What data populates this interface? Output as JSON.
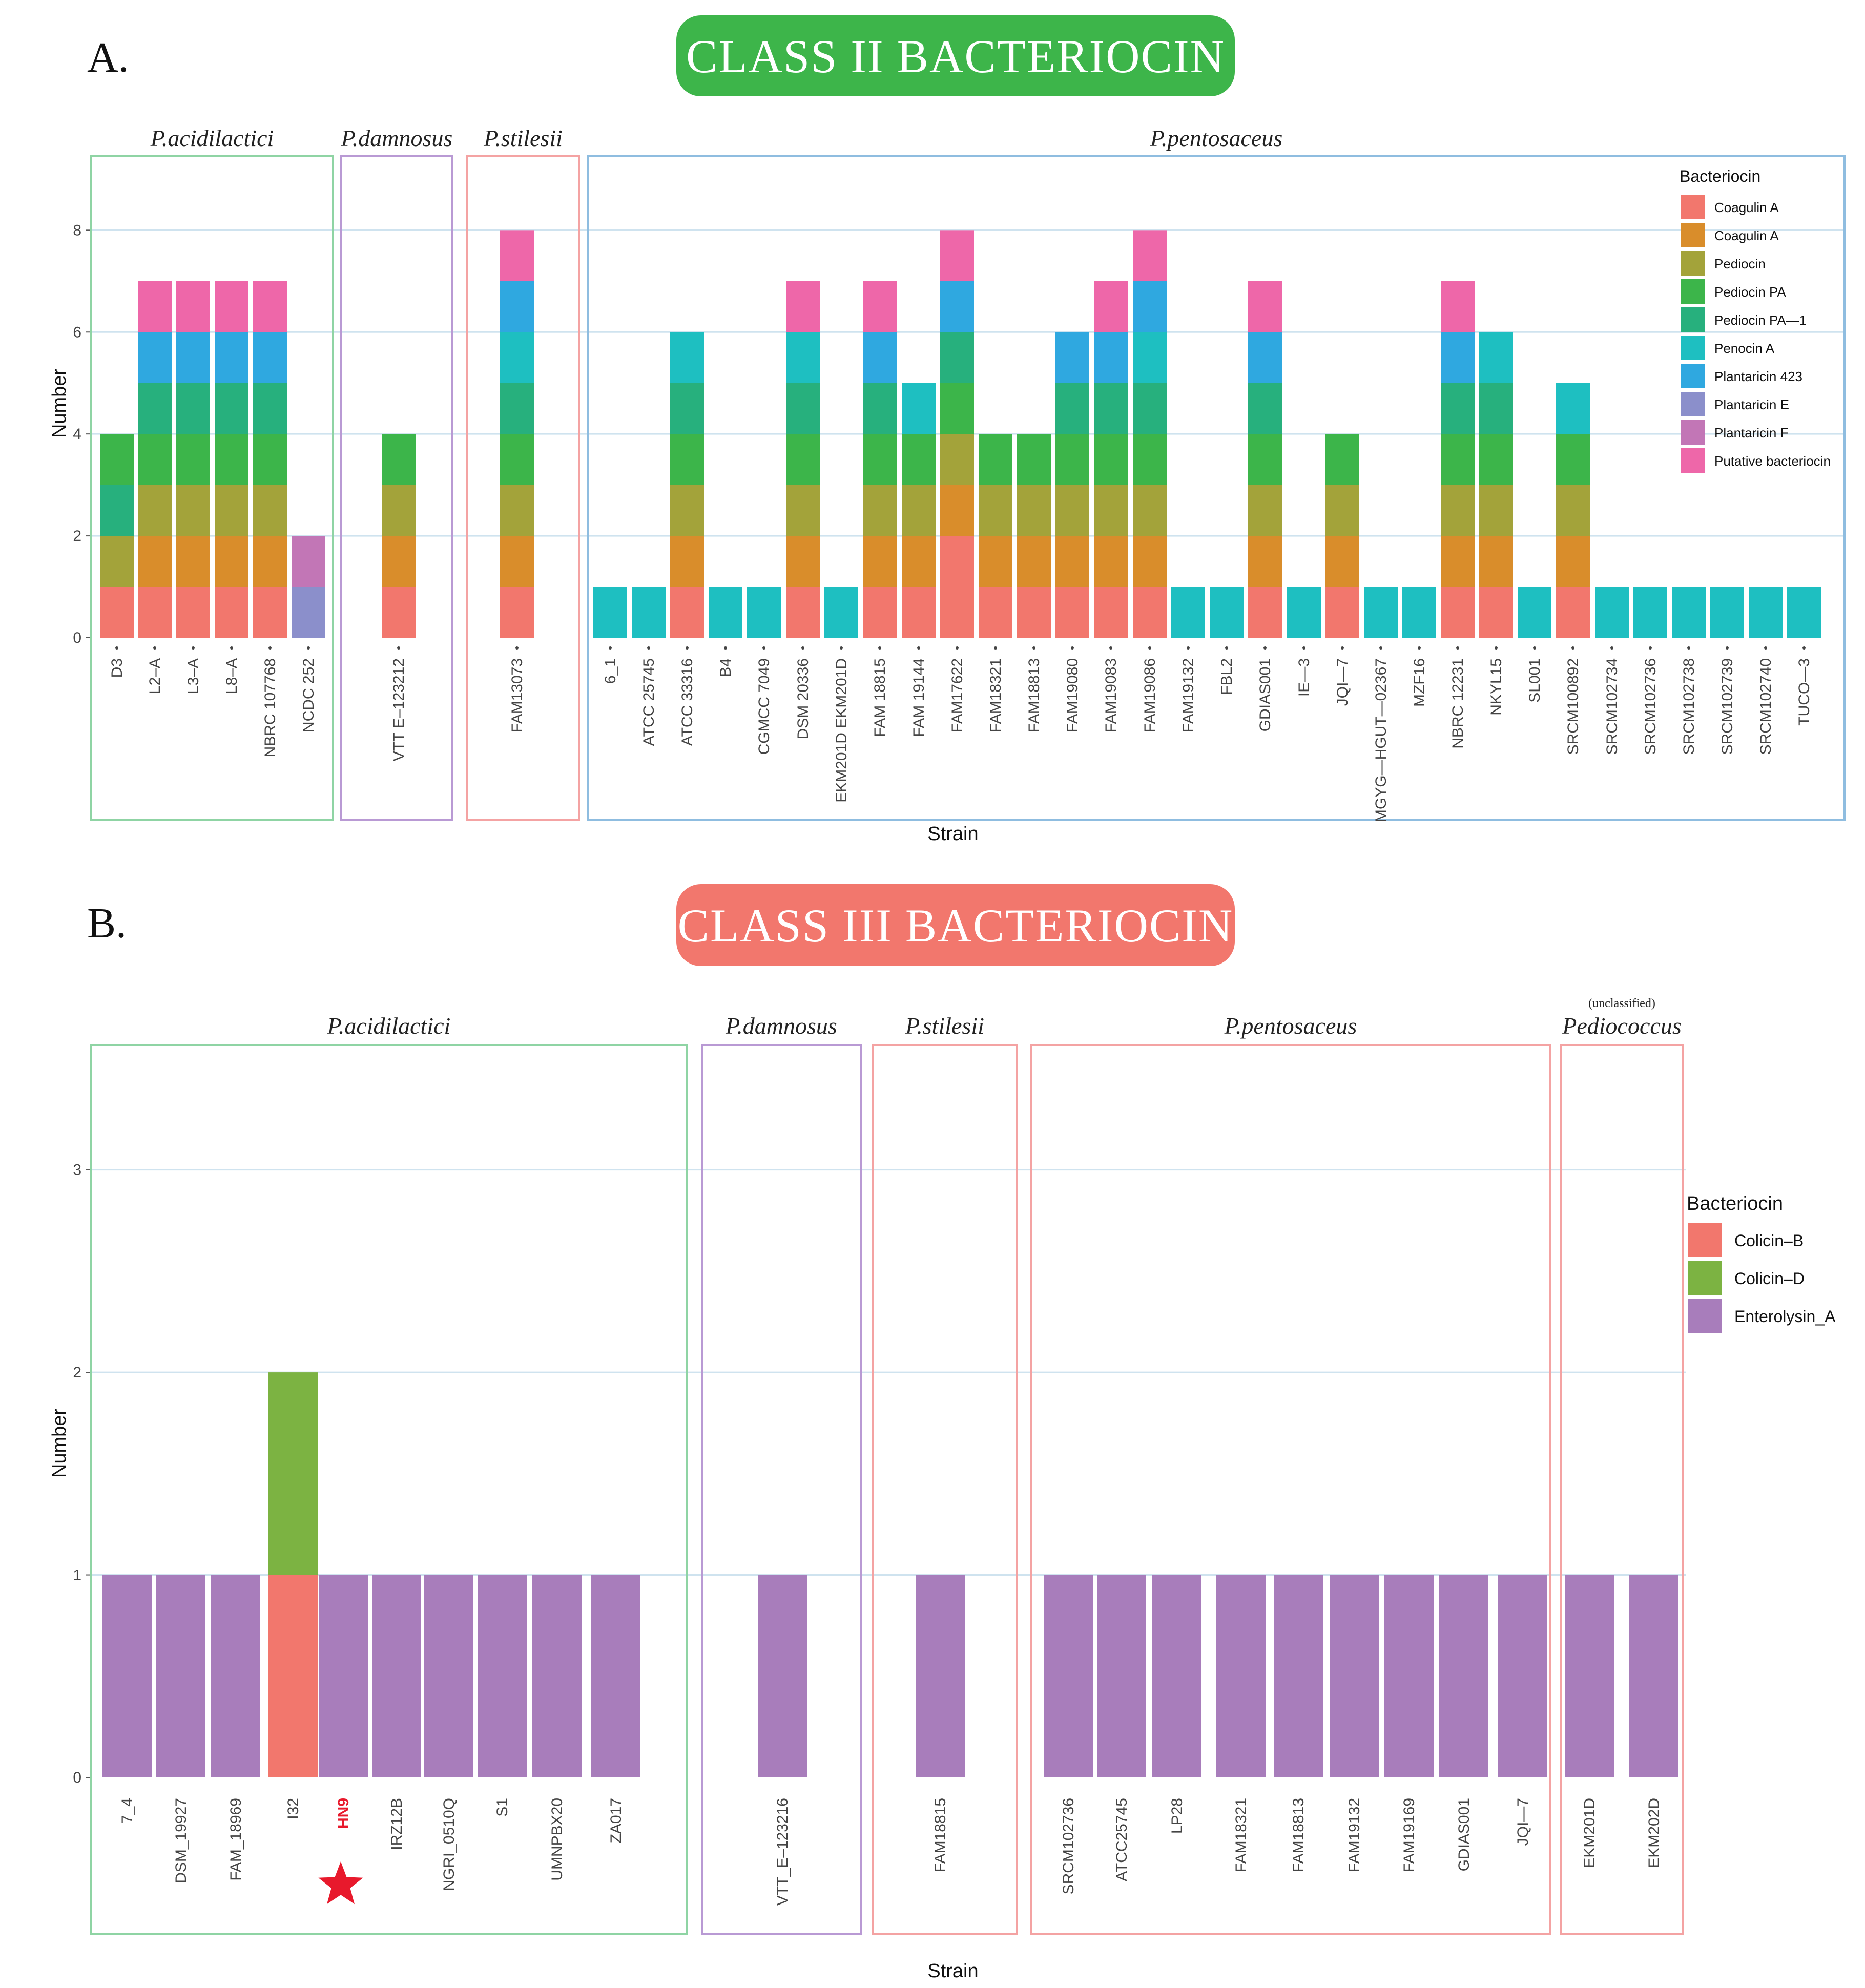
{
  "chart_data": [
    {
      "type": "bar",
      "stacked": true,
      "panel_letter": "A.",
      "title": "CLASS II BACTERIOCIN",
      "title_color": "#3db54a",
      "xlabel": "Strain",
      "ylabel": "Number",
      "ylim": [
        0,
        9.2
      ],
      "yticks": [
        0,
        2,
        4,
        6,
        8
      ],
      "legend_title": "Bacteriocin",
      "series": [
        {
          "name": "Coagulin A",
          "color": "#f2776d"
        },
        {
          "name": "Coagulin A",
          "color": "#d98d2b"
        },
        {
          "name": "Pediocin",
          "color": "#a3a33a"
        },
        {
          "name": "Pediocin PA",
          "color": "#3cb54a"
        },
        {
          "name": "Pediocin PA—1",
          "color": "#27b07d"
        },
        {
          "name": "Penocin A",
          "color": "#1ebfc1"
        },
        {
          "name": "Plantaricin 423",
          "color": "#2fa8e0"
        },
        {
          "name": "Plantaricin E",
          "color": "#8b8fcb"
        },
        {
          "name": "Plantaricin F",
          "color": "#c276b6"
        },
        {
          "name": "Putative bacteriocin",
          "color": "#ee67a9"
        }
      ],
      "groups": [
        {
          "name": "P.acidilactici",
          "frame_color": "#8fd4a4",
          "strains": [
            {
              "name": "D3",
              "stack": [
                3,
                4,
                2,
                0
              ]
            },
            {
              "name": "L2–A",
              "stack": [
                9,
                6,
                4,
                3,
                2,
                1,
                0
              ]
            },
            {
              "name": "L3–A",
              "stack": [
                9,
                6,
                4,
                3,
                2,
                1,
                0
              ]
            },
            {
              "name": "L8–A",
              "stack": [
                9,
                6,
                4,
                3,
                2,
                1,
                0
              ]
            },
            {
              "name": "NBRC 107768",
              "stack": [
                9,
                6,
                4,
                3,
                2,
                1,
                0
              ]
            },
            {
              "name": "NCDC 252",
              "stack": [
                8,
                7
              ]
            }
          ]
        },
        {
          "name": "P.damnosus",
          "frame_color": "#b99ad4",
          "strains": [
            {
              "name": "VTT E–123212",
              "stack": [
                3,
                2,
                1,
                0
              ]
            }
          ]
        },
        {
          "name": "P.stilesii",
          "frame_color": "#f4a3a3",
          "strains": [
            {
              "name": "FAM13073",
              "stack": [
                9,
                6,
                5,
                4,
                3,
                2,
                1,
                0
              ]
            }
          ]
        },
        {
          "name": "P.pentosaceus",
          "frame_color": "#8fbde0",
          "strains": [
            {
              "name": "6_1",
              "stack": [
                5
              ]
            },
            {
              "name": "ATCC 25745",
              "stack": [
                5
              ]
            },
            {
              "name": "ATCC 33316",
              "stack": [
                5,
                4,
                3,
                2,
                1,
                0
              ]
            },
            {
              "name": "B4",
              "stack": [
                5
              ]
            },
            {
              "name": "CGMCC 7049",
              "stack": [
                5
              ]
            },
            {
              "name": "DSM 20336",
              "stack": [
                9,
                5,
                4,
                3,
                2,
                1,
                0
              ]
            },
            {
              "name": "EKM201D EKM201D",
              "stack": [
                5
              ]
            },
            {
              "name": "FAM 18815",
              "stack": [
                9,
                6,
                4,
                3,
                2,
                1,
                0
              ]
            },
            {
              "name": "FAM 19144",
              "stack": [
                5,
                3,
                2,
                1,
                0
              ]
            },
            {
              "name": "FAM17622",
              "stack": [
                9,
                6,
                4,
                3,
                2,
                1,
                0,
                0
              ]
            },
            {
              "name": "FAM18321",
              "stack": [
                3,
                2,
                1,
                0
              ]
            },
            {
              "name": "FAM18813",
              "stack": [
                3,
                2,
                1,
                0
              ]
            },
            {
              "name": "FAM19080",
              "stack": [
                6,
                4,
                3,
                2,
                1,
                0
              ]
            },
            {
              "name": "FAM19083",
              "stack": [
                9,
                6,
                4,
                3,
                2,
                1,
                0
              ]
            },
            {
              "name": "FAM19086",
              "stack": [
                9,
                6,
                5,
                4,
                3,
                2,
                1,
                0
              ]
            },
            {
              "name": "FAM19132",
              "stack": [
                5
              ]
            },
            {
              "name": "FBL2",
              "stack": [
                5
              ]
            },
            {
              "name": "GDIAS001",
              "stack": [
                9,
                6,
                4,
                3,
                2,
                1,
                0
              ]
            },
            {
              "name": "IE—3",
              "stack": [
                5
              ]
            },
            {
              "name": "JQI—7",
              "stack": [
                3,
                2,
                1,
                0
              ]
            },
            {
              "name": "MGYG—HGUT—02367",
              "stack": [
                5
              ]
            },
            {
              "name": "MZF16",
              "stack": [
                5
              ]
            },
            {
              "name": "NBRC 12231",
              "stack": [
                9,
                6,
                4,
                3,
                2,
                1,
                0
              ]
            },
            {
              "name": "NKYL15",
              "stack": [
                5,
                4,
                3,
                2,
                1,
                0
              ]
            },
            {
              "name": "SL001",
              "stack": [
                5
              ]
            },
            {
              "name": "SRCM100892",
              "stack": [
                5,
                3,
                2,
                1,
                0
              ]
            },
            {
              "name": "SRCM102734",
              "stack": [
                5
              ]
            },
            {
              "name": "SRCM102736",
              "stack": [
                5
              ]
            },
            {
              "name": "SRCM102738",
              "stack": [
                5
              ]
            },
            {
              "name": "SRCM102739",
              "stack": [
                5
              ]
            },
            {
              "name": "SRCM102740",
              "stack": [
                5
              ]
            },
            {
              "name": "TUCO—3",
              "stack": [
                5
              ]
            }
          ]
        }
      ]
    },
    {
      "type": "bar",
      "stacked": true,
      "panel_letter": "B.",
      "title": "CLASS III BACTERIOCIN",
      "title_color": "#f2776d",
      "xlabel": "Strain",
      "ylabel": "Number",
      "ylim": [
        0,
        3.3
      ],
      "yticks": [
        0,
        1,
        2,
        3
      ],
      "legend_title": "Bacteriocin",
      "series": [
        {
          "name": "Colicin–B",
          "color": "#f2776d"
        },
        {
          "name": "Colicin–D",
          "color": "#7cb342"
        },
        {
          "name": "Enterolysin_A",
          "color": "#a87dbb"
        }
      ],
      "highlight": {
        "strain": "HN9",
        "color": "#e8192c"
      },
      "groups": [
        {
          "name": "P.acidilactici",
          "frame_color": "#8fd4a4",
          "strains": [
            {
              "name": "7_4",
              "stack": [
                2
              ]
            },
            {
              "name": "DSM_19927",
              "stack": [
                2
              ]
            },
            {
              "name": "FAM_18969",
              "stack": [
                2
              ]
            },
            {
              "name": "I32",
              "stack": [
                1,
                0
              ]
            },
            {
              "name": "HN9",
              "stack": [
                2
              ]
            },
            {
              "name": "IRZ12B",
              "stack": [
                2
              ]
            },
            {
              "name": "NGRI_0510Q",
              "stack": [
                2
              ]
            },
            {
              "name": "S1",
              "stack": [
                2
              ]
            },
            {
              "name": "UMNPBX20",
              "stack": [
                2
              ]
            },
            {
              "name": "ZA017",
              "stack": [
                2
              ]
            }
          ]
        },
        {
          "name": "P.damnosus",
          "frame_color": "#b99ad4",
          "strains": [
            {
              "name": "VTT_E–123216",
              "stack": [
                2
              ]
            }
          ]
        },
        {
          "name": "P.stilesii",
          "frame_color": "#f4a3a3",
          "strains": [
            {
              "name": "FAM18815",
              "stack": [
                2
              ]
            }
          ]
        },
        {
          "name": "P.pentosaceus",
          "frame_color": "#f4a3a3",
          "strains": [
            {
              "name": "SRCM102736",
              "stack": [
                2
              ]
            },
            {
              "name": "ATCC25745",
              "stack": [
                2
              ]
            },
            {
              "name": "LP28",
              "stack": [
                2
              ]
            },
            {
              "name": "FAM18321",
              "stack": [
                2
              ]
            },
            {
              "name": "FAM18813",
              "stack": [
                2
              ]
            },
            {
              "name": "FAM19132",
              "stack": [
                2
              ]
            },
            {
              "name": "FAM19169",
              "stack": [
                2
              ]
            },
            {
              "name": "GDIAS001",
              "stack": [
                2
              ]
            },
            {
              "name": "JQI—7",
              "stack": [
                2
              ]
            }
          ]
        },
        {
          "name": "Pediococcus",
          "prefix": "(unclassified)",
          "frame_color": "#f4a3a3",
          "strains": [
            {
              "name": "EKM201D",
              "stack": [
                2
              ]
            },
            {
              "name": "EKM202D",
              "stack": [
                2
              ]
            }
          ]
        }
      ]
    }
  ]
}
